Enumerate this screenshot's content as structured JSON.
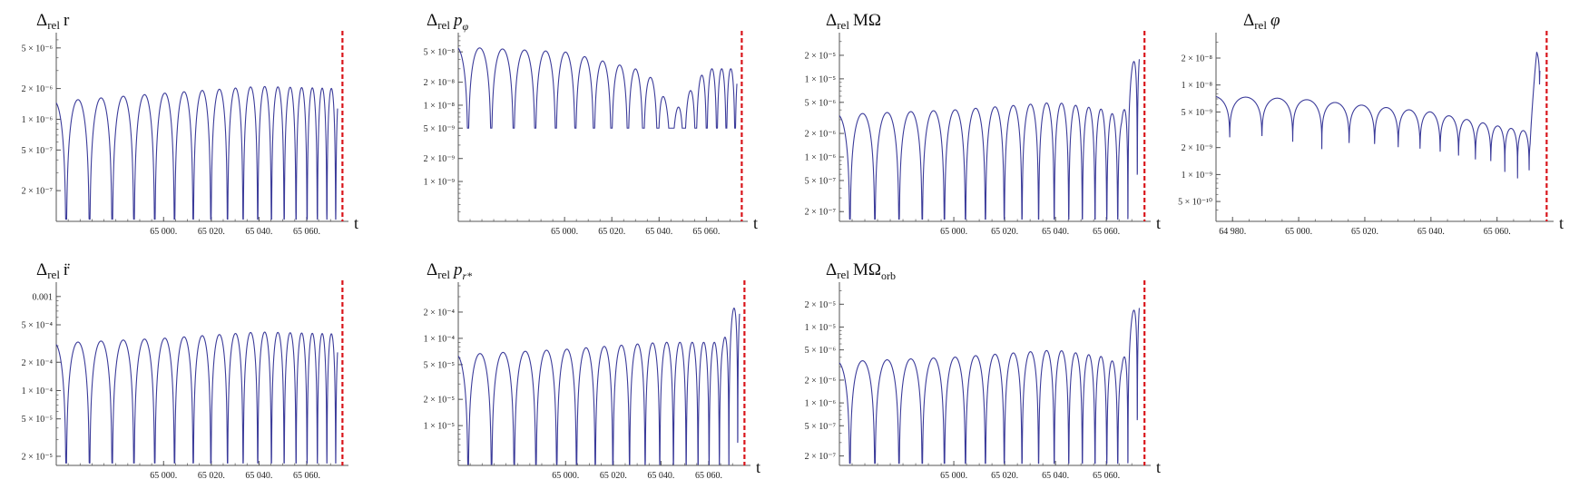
{
  "figure": {
    "axis_label": "t",
    "colors": {
      "curve": "#3b3b9a",
      "marker": "#d9151b",
      "axis": "#555555"
    }
  },
  "chart_data": [
    {
      "type": "line",
      "log_y": true,
      "grid": false,
      "title": "Δrel r",
      "title_main": "r",
      "title_style": "normal",
      "xlabel": "t",
      "xlim": [
        64955,
        65076
      ],
      "ylim": [
        1e-07,
        6.5e-06
      ],
      "xticks": [
        65000,
        65020,
        65040,
        65060
      ],
      "xtick_labels": [
        "65 000.",
        "65 020.",
        "65 040.",
        "65 060."
      ],
      "yticks": [
        5e-06,
        2e-06,
        1e-06,
        5e-07,
        2e-07
      ],
      "ytick_labels": [
        "5 × 10⁻⁶",
        "2 × 10⁻⁶",
        "1 × 10⁻⁶",
        "5 × 10⁻⁷",
        "2 × 10⁻⁷"
      ],
      "series": [
        {
          "values_desc": "oscillating envelope",
          "envelope": [
            [
              64955,
              1.5e-06
            ],
            [
              65000,
              1.8e-06
            ],
            [
              65040,
              2.1e-06
            ],
            [
              65072,
              2e-06
            ]
          ],
          "period": [
            10,
            3.5
          ],
          "depth_floor": 1.05e-07
        }
      ],
      "marker_x": 65075
    },
    {
      "type": "line",
      "log_y": true,
      "grid": false,
      "title": "Δrel pφ",
      "title_main": "p",
      "title_sub": "φ",
      "title_style": "italic",
      "xlabel": "t",
      "xlim": [
        64955,
        65076
      ],
      "ylim": [
        3e-10,
        8e-08
      ],
      "xticks": [
        65000,
        65020,
        65040,
        65060
      ],
      "xtick_labels": [
        "65 000.",
        "65 020.",
        "65 040.",
        "65 060."
      ],
      "yticks": [
        5e-08,
        2e-08,
        1e-08,
        5e-09,
        2e-09,
        1e-09
      ],
      "ytick_labels": [
        "5 × 10⁻⁸",
        "2 × 10⁻⁸",
        "1 × 10⁻⁸",
        "5 × 10⁻⁹",
        "2 × 10⁻⁹",
        "1 × 10⁻⁹"
      ],
      "series": [
        {
          "values_desc": "oscillating, drop near 65044",
          "envelope": [
            [
              64955,
              5.8e-08
            ],
            [
              65000,
              5e-08
            ],
            [
              65030,
              3e-08
            ],
            [
              65040,
              2e-08
            ],
            [
              65045,
              7e-09
            ],
            [
              65060,
              3e-08
            ],
            [
              65072,
              3e-08
            ]
          ],
          "period": [
            10,
            3.5
          ],
          "depth_floor": 5e-09
        }
      ],
      "marker_x": 65075
    },
    {
      "type": "line",
      "log_y": true,
      "grid": false,
      "title": "Δrel MΩ",
      "title_main": "MΩ",
      "title_style": "normal",
      "xlabel": "t",
      "xlim": [
        64955,
        65076
      ],
      "ylim": [
        1.5e-07,
        3.5e-05
      ],
      "xticks": [
        65000,
        65020,
        65040,
        65060
      ],
      "xtick_labels": [
        "65 000.",
        "65 020.",
        "65 040.",
        "65 060."
      ],
      "yticks": [
        2e-05,
        1e-05,
        5e-06,
        2e-06,
        1e-06,
        5e-07,
        2e-07
      ],
      "ytick_labels": [
        "2 × 10⁻⁵",
        "1 × 10⁻⁵",
        "5 × 10⁻⁶",
        "2 × 10⁻⁶",
        "1 × 10⁻⁶",
        "5 × 10⁻⁷",
        "2 × 10⁻⁷"
      ],
      "series": [
        {
          "values_desc": "oscillating, rising at end",
          "envelope": [
            [
              64955,
              3.5e-06
            ],
            [
              65000,
              4e-06
            ],
            [
              65040,
              5e-06
            ],
            [
              65060,
              4e-06
            ],
            [
              65066,
              3e-06
            ],
            [
              65072,
              2.8e-05
            ]
          ],
          "period": [
            10,
            3.5
          ],
          "depth_floor": 1.6e-07
        }
      ],
      "marker_x": 65075
    },
    {
      "type": "line",
      "log_y": true,
      "grid": false,
      "title": "Δrel φ",
      "title_main": "φ",
      "title_style": "italic",
      "xlabel": "t",
      "xlim": [
        64975,
        65076
      ],
      "ylim": [
        3e-10,
        3.5e-08
      ],
      "xticks": [
        64980,
        65000,
        65020,
        65040,
        65060
      ],
      "xtick_labels": [
        "64 980.",
        "65 000.",
        "65 020.",
        "65 040.",
        "65 060."
      ],
      "yticks": [
        2e-08,
        1e-08,
        5e-09,
        2e-09,
        1e-09,
        5e-10
      ],
      "ytick_labels": [
        "2 × 10⁻⁸",
        "1 × 10⁻⁸",
        "5 × 10⁻⁹",
        "2 × 10⁻⁹",
        "1 × 10⁻⁹",
        "5 × 10⁻¹⁰"
      ],
      "series": [
        {
          "values_desc": "shallow oscillation, spike at end",
          "envelope": [
            [
              64975,
              7.5e-09
            ],
            [
              65000,
              7e-09
            ],
            [
              65040,
              5e-09
            ],
            [
              65060,
              3.5e-09
            ],
            [
              65070,
              3e-09
            ],
            [
              65072,
              2.5e-08
            ]
          ],
          "period": [
            10,
            3.0
          ],
          "depth_ratio": 0.25
        }
      ],
      "marker_x": 65075
    },
    {
      "type": "line",
      "log_y": true,
      "grid": false,
      "title": "Δrel r̈",
      "title_main": "r̈",
      "title_style": "normal",
      "xlabel": "",
      "xlim": [
        64955,
        65076
      ],
      "ylim": [
        1.6e-05,
        0.0013
      ],
      "xticks": [
        65000,
        65020,
        65040,
        65060
      ],
      "xtick_labels": [
        "65 000.",
        "65 020.",
        "65 040.",
        "65 060."
      ],
      "yticks": [
        0.001,
        0.0005,
        0.0002,
        0.0001,
        5e-05,
        2e-05
      ],
      "ytick_labels": [
        "0.001",
        "5 × 10⁻⁴",
        "2 × 10⁻⁴",
        "1 × 10⁻⁴",
        "5 × 10⁻⁵",
        "2 × 10⁻⁵"
      ],
      "series": [
        {
          "values_desc": "oscillating envelope",
          "envelope": [
            [
              64955,
              0.00032
            ],
            [
              65000,
              0.00036
            ],
            [
              65040,
              0.00042
            ],
            [
              65072,
              0.0004
            ]
          ],
          "period": [
            10,
            3.5
          ],
          "depth_floor": 1.7e-05
        }
      ],
      "marker_x": 65075
    },
    {
      "type": "line",
      "log_y": true,
      "grid": false,
      "title": "Δrel pr*",
      "title_main": "p",
      "title_sub": "r*",
      "title_style": "italic",
      "xlabel": "t",
      "xlim": [
        64955,
        65076
      ],
      "ylim": [
        3.5e-06,
        0.0004
      ],
      "xticks": [
        65000,
        65020,
        65040,
        65060
      ],
      "xtick_labels": [
        "65 000.",
        "65 020.",
        "65 040.",
        "65 060."
      ],
      "yticks": [
        0.0002,
        0.0001,
        5e-05,
        2e-05,
        1e-05
      ],
      "ytick_labels": [
        "2 × 10⁻⁴",
        "1 × 10⁻⁴",
        "5 × 10⁻⁵",
        "2 × 10⁻⁵",
        "1 × 10⁻⁵"
      ],
      "series": [
        {
          "values_desc": "oscillating, rising at end",
          "envelope": [
            [
              64955,
              6.5e-05
            ],
            [
              65000,
              7.5e-05
            ],
            [
              65040,
              9e-05
            ],
            [
              65066,
              9e-05
            ],
            [
              65072,
              0.0003
            ]
          ],
          "period": [
            10,
            3.5
          ],
          "depth_floor": 3.6e-06
        }
      ],
      "marker_x": 65075
    },
    {
      "type": "line",
      "log_y": true,
      "grid": false,
      "title": "Δrel MΩorb",
      "title_main": "MΩ",
      "title_sub": "orb",
      "title_style": "normal",
      "xlabel": "t",
      "xlim": [
        64955,
        65076
      ],
      "ylim": [
        1.5e-07,
        3.5e-05
      ],
      "xticks": [
        65000,
        65020,
        65040,
        65060
      ],
      "xtick_labels": [
        "65 000.",
        "65 020.",
        "65 040.",
        "65 060."
      ],
      "yticks": [
        2e-05,
        1e-05,
        5e-06,
        2e-06,
        1e-06,
        5e-07,
        2e-07
      ],
      "ytick_labels": [
        "2 × 10⁻⁵",
        "1 × 10⁻⁵",
        "5 × 10⁻⁶",
        "2 × 10⁻⁶",
        "1 × 10⁻⁶",
        "5 × 10⁻⁷",
        "2 × 10⁻⁷"
      ],
      "series": [
        {
          "values_desc": "oscillating, rising at end",
          "envelope": [
            [
              64955,
              3.5e-06
            ],
            [
              65000,
              4e-06
            ],
            [
              65040,
              5e-06
            ],
            [
              65060,
              4e-06
            ],
            [
              65066,
              3e-06
            ],
            [
              65072,
              2.8e-05
            ]
          ],
          "period": [
            10,
            3.5
          ],
          "depth_floor": 1.6e-07
        }
      ],
      "marker_x": 65075
    }
  ]
}
